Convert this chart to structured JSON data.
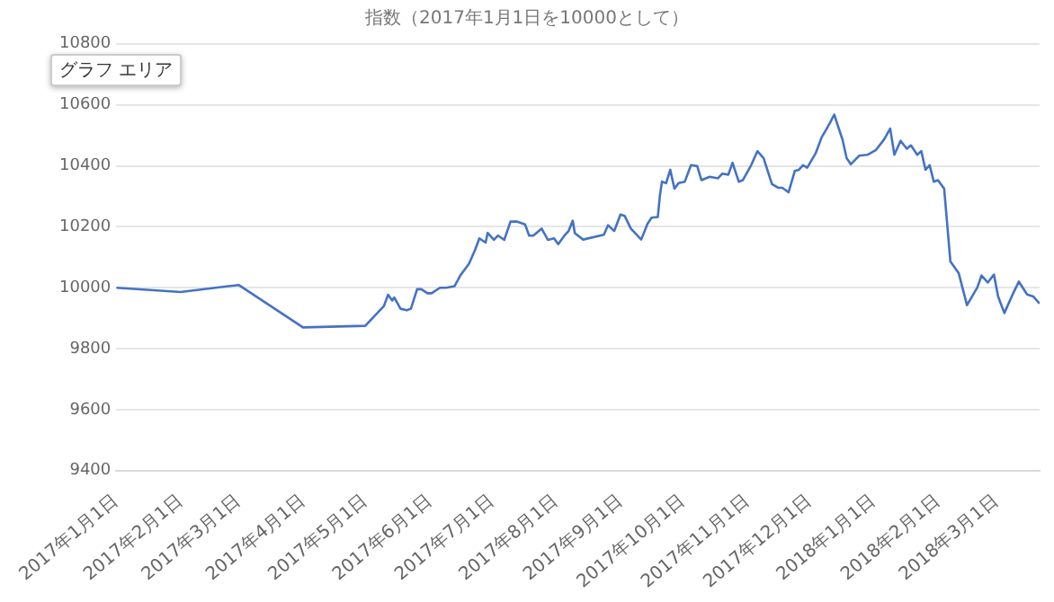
{
  "chart_data": {
    "type": "line",
    "title": "指数（2017年1月1日を10000として）",
    "annotations": [
      "グラフ エリア"
    ],
    "x": [
      "2017-01-01",
      "2017-02-01",
      "2017-03-01",
      "2017-04-01",
      "2017-05-01",
      "2017-05-10",
      "2017-05-12",
      "2017-05-14",
      "2017-05-15",
      "2017-05-18",
      "2017-05-21",
      "2017-05-23",
      "2017-05-26",
      "2017-05-28",
      "2017-05-31",
      "2017-06-02",
      "2017-06-06",
      "2017-06-09",
      "2017-06-13",
      "2017-06-16",
      "2017-06-20",
      "2017-06-23",
      "2017-06-25",
      "2017-06-28",
      "2017-06-29",
      "2017-07-02",
      "2017-07-04",
      "2017-07-07",
      "2017-07-10",
      "2017-07-13",
      "2017-07-17",
      "2017-07-19",
      "2017-07-21",
      "2017-07-25",
      "2017-07-28",
      "2017-07-31",
      "2017-08-02",
      "2017-08-05",
      "2017-08-07",
      "2017-08-09",
      "2017-08-10",
      "2017-08-14",
      "2017-08-24",
      "2017-08-26",
      "2017-08-29",
      "2017-09-01",
      "2017-09-03",
      "2017-09-06",
      "2017-09-11",
      "2017-09-14",
      "2017-09-16",
      "2017-09-19",
      "2017-09-20",
      "2017-09-21",
      "2017-09-23",
      "2017-09-25",
      "2017-09-27",
      "2017-09-29",
      "2017-10-02",
      "2017-10-05",
      "2017-10-08",
      "2017-10-10",
      "2017-10-14",
      "2017-10-18",
      "2017-10-20",
      "2017-10-23",
      "2017-10-25",
      "2017-10-28",
      "2017-10-30",
      "2017-11-03",
      "2017-11-06",
      "2017-11-09",
      "2017-11-13",
      "2017-11-16",
      "2017-11-18",
      "2017-11-21",
      "2017-11-24",
      "2017-11-26",
      "2017-11-28",
      "2017-11-30",
      "2017-12-04",
      "2017-12-07",
      "2017-12-09",
      "2017-12-11",
      "2017-12-13",
      "2017-12-17",
      "2017-12-19",
      "2017-12-21",
      "2017-12-25",
      "2017-12-29",
      "2018-01-02",
      "2018-01-06",
      "2018-01-09",
      "2018-01-11",
      "2018-01-14",
      "2018-01-17",
      "2018-01-19",
      "2018-01-22",
      "2018-01-24",
      "2018-01-26",
      "2018-01-28",
      "2018-01-30",
      "2018-02-01",
      "2018-02-04",
      "2018-02-07",
      "2018-02-11",
      "2018-02-15",
      "2018-02-20",
      "2018-02-22",
      "2018-02-25",
      "2018-02-28",
      "2018-03-02",
      "2018-03-05",
      "2018-03-09",
      "2018-03-12",
      "2018-03-16",
      "2018-03-19",
      "2018-03-22"
    ],
    "series": [
      {
        "color": "#4472c4",
        "values": [
          10000,
          9986,
          10009,
          9870,
          9875,
          9940,
          9977,
          9958,
          9968,
          9931,
          9926,
          9931,
          9995,
          9995,
          9982,
          9982,
          10000,
          10000,
          10005,
          10042,
          10079,
          10125,
          10162,
          10148,
          10180,
          10157,
          10171,
          10157,
          10217,
          10217,
          10208,
          10171,
          10171,
          10194,
          10157,
          10162,
          10143,
          10171,
          10186,
          10220,
          10179,
          10158,
          10174,
          10205,
          10186,
          10240,
          10236,
          10194,
          10158,
          10209,
          10230,
          10232,
          10302,
          10348,
          10343,
          10387,
          10325,
          10343,
          10348,
          10402,
          10399,
          10353,
          10364,
          10359,
          10374,
          10371,
          10410,
          10348,
          10353,
          10402,
          10448,
          10425,
          10340,
          10328,
          10328,
          10313,
          10383,
          10387,
          10402,
          10394,
          10440,
          10494,
          10517,
          10541,
          10568,
          10486,
          10425,
          10405,
          10433,
          10436,
          10451,
          10486,
          10522,
          10436,
          10482,
          10456,
          10467,
          10436,
          10448,
          10387,
          10402,
          10348,
          10353,
          10325,
          10086,
          10048,
          9943,
          10001,
          10040,
          10017,
          10043,
          9971,
          9917,
          9978,
          10020,
          9978,
          9971,
          9948
        ]
      }
    ],
    "xlim": [
      "2017-01-01",
      "2018-03-22"
    ],
    "xticks": [
      {
        "value": "2017-01-01",
        "label": "2017年1月1日"
      },
      {
        "value": "2017-02-01",
        "label": "2017年2月1日"
      },
      {
        "value": "2017-03-01",
        "label": "2017年3月1日"
      },
      {
        "value": "2017-04-01",
        "label": "2017年4月1日"
      },
      {
        "value": "2017-05-01",
        "label": "2017年5月1日"
      },
      {
        "value": "2017-06-01",
        "label": "2017年6月1日"
      },
      {
        "value": "2017-07-01",
        "label": "2017年7月1日"
      },
      {
        "value": "2017-08-01",
        "label": "2017年8月1日"
      },
      {
        "value": "2017-09-01",
        "label": "2017年9月1日"
      },
      {
        "value": "2017-10-01",
        "label": "2017年10月1日"
      },
      {
        "value": "2017-11-01",
        "label": "2017年11月1日"
      },
      {
        "value": "2017-12-01",
        "label": "2017年12月1日"
      },
      {
        "value": "2018-01-01",
        "label": "2018年1月1日"
      },
      {
        "value": "2018-02-01",
        "label": "2018年2月1日"
      },
      {
        "value": "2018-03-01",
        "label": "2018年3月1日"
      }
    ],
    "ylim": [
      9400,
      10800
    ],
    "yticks": [
      9400,
      9600,
      9800,
      10000,
      10200,
      10400,
      10600,
      10800
    ],
    "grid": "y",
    "legend": false,
    "marker": "none",
    "line_style": "solid"
  }
}
